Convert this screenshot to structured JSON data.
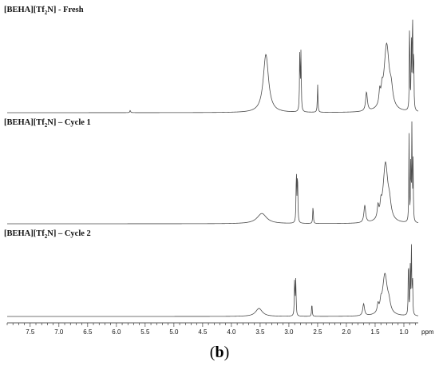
{
  "chart_data": {
    "type": "line",
    "panel_label_open": "(",
    "panel_label_letter": "b",
    "panel_label_close": ")",
    "xaxis": {
      "unit_label": "ppm",
      "reversed": true,
      "xlim": [
        7.9,
        0.75
      ],
      "ticks": [
        "7.5",
        "7.0",
        "6.5",
        "6.0",
        "5.5",
        "5.0",
        "4.5",
        "4.0",
        "3.5",
        "3.0",
        "2.5",
        "2.0",
        "1.5",
        "1.0"
      ],
      "tick_values": [
        7.5,
        7.0,
        6.5,
        6.0,
        5.5,
        5.0,
        4.5,
        4.0,
        3.5,
        3.0,
        2.5,
        2.0,
        1.5,
        1.0
      ],
      "minor_step": 0.1
    },
    "spectra": [
      {
        "title_prefix": "[BEHA][Tf",
        "title_sub": "2",
        "title_suffix": "N] - Fresh",
        "peaks": [
          {
            "ppm": 5.76,
            "height": 0.02,
            "width": 0.008
          },
          {
            "ppm": 3.4,
            "height": 0.52,
            "width": 0.055
          },
          {
            "ppm": 2.81,
            "height": 0.54,
            "width": 0.006
          },
          {
            "ppm": 2.79,
            "height": 0.52,
            "width": 0.006
          },
          {
            "ppm": 2.5,
            "height": 0.25,
            "width": 0.006
          },
          {
            "ppm": 1.65,
            "height": 0.17,
            "width": 0.018
          },
          {
            "ppm": 1.42,
            "height": 0.12,
            "width": 0.015
          },
          {
            "ppm": 1.38,
            "height": 0.1,
            "width": 0.015
          },
          {
            "ppm": 1.3,
            "height": 0.6,
            "width": 0.055
          },
          {
            "ppm": 1.22,
            "height": 0.12,
            "width": 0.03
          },
          {
            "ppm": 0.9,
            "height": 0.9,
            "width": 0.005
          },
          {
            "ppm": 0.87,
            "height": 0.65,
            "width": 0.005
          },
          {
            "ppm": 0.85,
            "height": 0.97,
            "width": 0.005
          },
          {
            "ppm": 0.83,
            "height": 0.6,
            "width": 0.005
          }
        ]
      },
      {
        "title_prefix": "[BEHA][Tf",
        "title_sub": "2",
        "title_suffix": "N] – Cycle 1",
        "peaks": [
          {
            "ppm": 3.47,
            "height": 0.1,
            "width": 0.1
          },
          {
            "ppm": 2.87,
            "height": 0.52,
            "width": 0.006
          },
          {
            "ppm": 2.85,
            "height": 0.5,
            "width": 0.006
          },
          {
            "ppm": 2.58,
            "height": 0.18,
            "width": 0.006
          },
          {
            "ppm": 1.68,
            "height": 0.17,
            "width": 0.018
          },
          {
            "ppm": 1.45,
            "height": 0.12,
            "width": 0.015
          },
          {
            "ppm": 1.4,
            "height": 0.1,
            "width": 0.015
          },
          {
            "ppm": 1.32,
            "height": 0.58,
            "width": 0.05
          },
          {
            "ppm": 1.25,
            "height": 0.12,
            "width": 0.03
          },
          {
            "ppm": 0.91,
            "height": 0.85,
            "width": 0.005
          },
          {
            "ppm": 0.88,
            "height": 0.62,
            "width": 0.005
          },
          {
            "ppm": 0.86,
            "height": 0.97,
            "width": 0.005
          },
          {
            "ppm": 0.84,
            "height": 0.58,
            "width": 0.005
          }
        ]
      },
      {
        "title_prefix": "[BEHA][Tf",
        "title_sub": "2",
        "title_suffix": "N] – Cycle 2",
        "peaks": [
          {
            "ppm": 3.52,
            "height": 0.1,
            "width": 0.07
          },
          {
            "ppm": 2.9,
            "height": 0.47,
            "width": 0.006
          },
          {
            "ppm": 2.88,
            "height": 0.45,
            "width": 0.006
          },
          {
            "ppm": 2.6,
            "height": 0.17,
            "width": 0.006
          },
          {
            "ppm": 1.7,
            "height": 0.15,
            "width": 0.018
          },
          {
            "ppm": 1.45,
            "height": 0.1,
            "width": 0.015
          },
          {
            "ppm": 1.4,
            "height": 0.09,
            "width": 0.015
          },
          {
            "ppm": 1.33,
            "height": 0.52,
            "width": 0.05
          },
          {
            "ppm": 1.26,
            "height": 0.1,
            "width": 0.03
          },
          {
            "ppm": 0.92,
            "height": 0.82,
            "width": 0.005
          },
          {
            "ppm": 0.89,
            "height": 0.6,
            "width": 0.005
          },
          {
            "ppm": 0.87,
            "height": 0.95,
            "width": 0.005
          },
          {
            "ppm": 0.85,
            "height": 0.55,
            "width": 0.005
          }
        ]
      }
    ],
    "colors": {
      "trace": "#4a4a4a",
      "axis": "#222222",
      "text": "#111111"
    }
  }
}
